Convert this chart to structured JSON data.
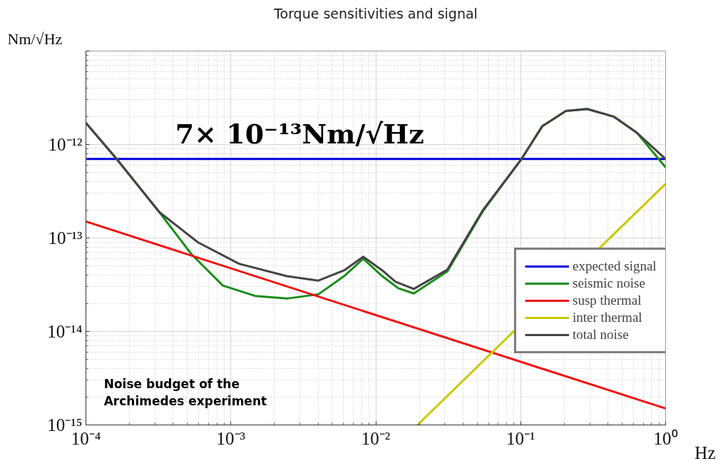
{
  "chart_data": {
    "type": "line",
    "title": "Torque sensitivities and signal",
    "xlabel": "Hz",
    "ylabel": "Nm/√Hz",
    "log": "xy",
    "grid": true,
    "legend": "right",
    "xlim": [
      0.0001,
      1
    ],
    "ylim": [
      1e-15,
      1e-11
    ],
    "xticks": [
      {
        "value": 0.0001,
        "label": "10⁻⁴"
      },
      {
        "value": 0.001,
        "label": "10⁻³"
      },
      {
        "value": 0.01,
        "label": "10⁻²"
      },
      {
        "value": 0.1,
        "label": "10⁻¹"
      },
      {
        "value": 1,
        "label": "10⁰"
      }
    ],
    "yticks": [
      {
        "value": 1e-15,
        "label": "10⁻¹⁵"
      },
      {
        "value": 1e-14,
        "label": "10⁻¹⁴"
      },
      {
        "value": 1e-13,
        "label": "10⁻¹³"
      },
      {
        "value": 1e-12,
        "label": "10⁻¹²"
      },
      {
        "value": 1e-11,
        "label": null
      }
    ],
    "annotations": [
      "7× 10⁻¹³Nm/√Hz",
      "Noise budget of the\nArchimedes experiment"
    ],
    "series": [
      {
        "name": "expected signal",
        "color": "#0000e0",
        "x": [
          0.0001,
          1
        ],
        "values": [
          7e-13,
          7e-13
        ]
      },
      {
        "name": "seismic noise",
        "color": "#1a8c1a",
        "x": [
          0.0001,
          0.000163,
          0.000321,
          0.000535,
          0.00088,
          0.00147,
          0.00244,
          0.00402,
          0.00604,
          0.0082,
          0.0111,
          0.0143,
          0.0183,
          0.0312,
          0.055,
          0.1,
          0.141,
          0.205,
          0.288,
          0.438,
          0.636,
          1
        ],
        "values": [
          1.7e-12,
          7e-13,
          1.89e-13,
          6.7e-14,
          3.1e-14,
          2.4e-14,
          2.25e-14,
          2.5e-14,
          3.9e-14,
          6e-14,
          3.9e-14,
          2.9e-14,
          2.55e-14,
          4.4e-14,
          1.95e-13,
          6.8e-13,
          1.57e-12,
          2.28e-12,
          2.4e-12,
          1.99e-12,
          1.33e-12,
          5.7e-13
        ]
      },
      {
        "name": "susp thermal",
        "color": "#ee1111",
        "x": [
          0.0001,
          1
        ],
        "values": [
          1.5e-13,
          1.5e-15
        ]
      },
      {
        "name": "inter thermal",
        "color": "#c8c800",
        "x": [
          0.0194,
          1
        ],
        "values": [
          1e-15,
          3.8e-13
        ]
      },
      {
        "name": "total noise",
        "color": "#444444",
        "x": [
          0.0001,
          0.000163,
          0.000321,
          0.000592,
          0.00114,
          0.00244,
          0.00402,
          0.00604,
          0.0082,
          0.0111,
          0.0137,
          0.0183,
          0.0312,
          0.055,
          0.1,
          0.141,
          0.205,
          0.288,
          0.438,
          0.636,
          1
        ],
        "values": [
          1.7e-12,
          7e-13,
          1.89e-13,
          9e-14,
          5.3e-14,
          3.9e-14,
          3.5e-14,
          4.5e-14,
          6.3e-14,
          4.5e-14,
          3.4e-14,
          2.85e-14,
          4.6e-14,
          2e-13,
          6.8e-13,
          1.57e-12,
          2.28e-12,
          2.4e-12,
          1.99e-12,
          1.33e-12,
          7e-13
        ]
      }
    ]
  }
}
